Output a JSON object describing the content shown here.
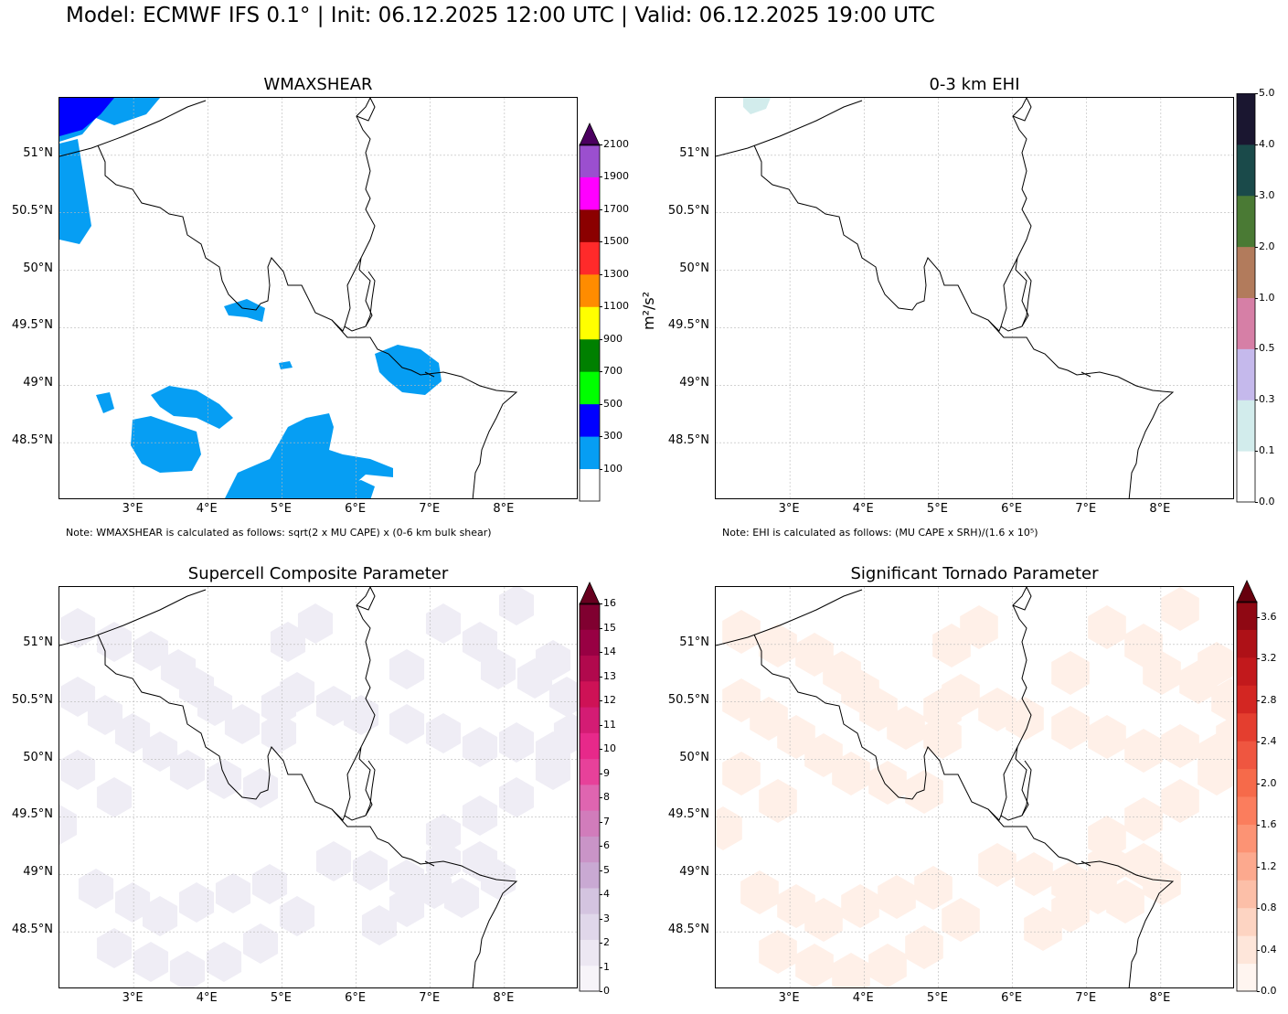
{
  "title": "Model: ECMWF IFS 0.1° | Init: 06.12.2025 12:00 UTC | Valid: 06.12.2025 19:00 UTC",
  "lat_labels": [
    "51°N",
    "50.5°N",
    "50°N",
    "49.5°N",
    "49°N",
    "48.5°N"
  ],
  "lon_labels": [
    "3°E",
    "4°E",
    "5°E",
    "6°E",
    "7°E",
    "8°E"
  ],
  "panels": [
    {
      "title": "WMAXSHEAR",
      "note": "Note: WMAXSHEAR is calculated as follows: sqrt(2 x MU CAPE) x (0-6 km bulk shear)",
      "unit": "m²/s²",
      "colorbar": {
        "extend_top": true,
        "arrow_color": "#4b0060",
        "colors": [
          "#ffffff",
          "#069ef3",
          "#0000ff",
          "#00ff00",
          "#008000",
          "#ffff00",
          "#ff8c00",
          "#ff2a2a",
          "#8b0000",
          "#ff00ff",
          "#9b4fcf",
          "#4b0060"
        ],
        "ticks": [
          "100",
          "300",
          "500",
          "700",
          "900",
          "1100",
          "1300",
          "1500",
          "1700",
          "1900",
          "2100"
        ]
      },
      "fill_color": "#069ef3",
      "shade_color": "#0000ff"
    },
    {
      "title": "0-3 km EHI",
      "note": "Note: EHI is calculated as follows: (MU CAPE x SRH)/(1.6 x 10⁵)",
      "colorbar": {
        "extend_top": false,
        "colors": [
          "#ffffff",
          "#d2ecec",
          "#c5b9ec",
          "#d67fa6",
          "#b27b5c",
          "#4a7a34",
          "#1a4a4a",
          "#1a1630"
        ],
        "ticks": [
          "0.0",
          "0.1",
          "0.3",
          "0.5",
          "1.0",
          "2.0",
          "3.0",
          "4.0",
          "5.0"
        ]
      },
      "fill_color": "#d2ecec"
    },
    {
      "title": "Supercell Composite Parameter",
      "colorbar": {
        "extend_top": true,
        "arrow_color": "#67001f",
        "colors": [
          "#f7f4f9",
          "#ece7f2",
          "#e0d7ea",
          "#d4c4e0",
          "#c9a9d3",
          "#c994c7",
          "#d17cbb",
          "#df65b0",
          "#e7419a",
          "#e7298a",
          "#d41c74",
          "#ce1256",
          "#b1094d",
          "#980043",
          "#800030",
          "#67001f"
        ],
        "ticks": [
          "0",
          "1",
          "2",
          "3",
          "4",
          "5",
          "6",
          "7",
          "8",
          "9",
          "10",
          "11",
          "12",
          "13",
          "14",
          "15",
          "16"
        ]
      },
      "fill_color": "#efedf5"
    },
    {
      "title": "Significant Tornado Parameter",
      "colorbar": {
        "extend_top": true,
        "arrow_color": "#67000d",
        "colors": [
          "#fff5f0",
          "#fee6da",
          "#fdd4c2",
          "#fcbfa8",
          "#fca98e",
          "#fc9374",
          "#fb7d5d",
          "#f66a4a",
          "#ef5640",
          "#e43e2f",
          "#d32622",
          "#c2191c",
          "#ae1117",
          "#8f0813",
          "#67000d"
        ],
        "ticks": [
          "0.0",
          "0.4",
          "0.8",
          "1.2",
          "1.6",
          "2.0",
          "2.4",
          "2.8",
          "3.2",
          "3.6"
        ],
        "tick_max": 3.75
      },
      "fill_color": "#fff0e8"
    }
  ]
}
